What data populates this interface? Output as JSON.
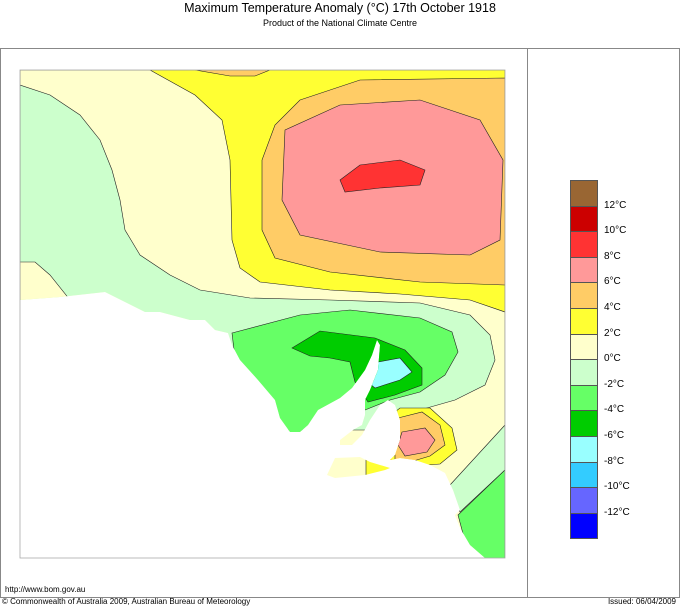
{
  "header": {
    "title": "Maximum Temperature Anomaly (°C)  17th October 1918",
    "subtitle": "Product of the National Climate Centre"
  },
  "legend": {
    "colors": [
      "#996633",
      "#CC0000",
      "#FF3333",
      "#FF9999",
      "#FFCC66",
      "#FFFF33",
      "#FFFFCC",
      "#CCFFCC",
      "#66FF66",
      "#00CC00",
      "#99FFFF",
      "#33CCFF",
      "#6666FF",
      "#0000FF"
    ],
    "labels": [
      "12°C",
      "10°C",
      "8°C",
      "6°C",
      "4°C",
      "2°C",
      "0°C",
      "-2°C",
      "-4°C",
      "-6°C",
      "-8°C",
      "-10°C",
      "-12°C"
    ]
  },
  "footer": {
    "url": "http://www.bom.gov.au",
    "copyright": "© Commonwealth of Australia 2009, Australian Bureau of Meteorology",
    "issued": "Issued: 06/04/2009"
  }
}
